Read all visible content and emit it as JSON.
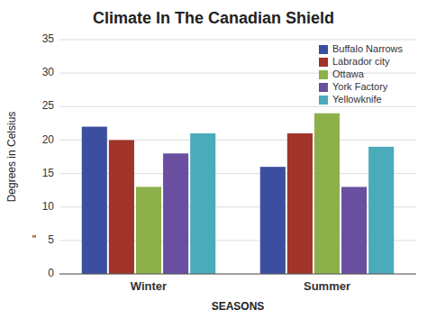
{
  "chart_data": {
    "type": "bar",
    "title": "Climate In The Canadian Shield",
    "xlabel": "SEASONS",
    "ylabel": "Degrees in Celsius",
    "categories": [
      "Winter",
      "Summer"
    ],
    "series": [
      {
        "name": "Buffalo Narrows",
        "color": "#3A4FA0",
        "values": [
          22,
          16
        ]
      },
      {
        "name": "Labrador city",
        "color": "#A0342A",
        "values": [
          20,
          21
        ]
      },
      {
        "name": "Ottawa",
        "color": "#8DB04A",
        "values": [
          13,
          24
        ]
      },
      {
        "name": "York Factory",
        "color": "#6A4FA0",
        "values": [
          18,
          13
        ]
      },
      {
        "name": "Yellowknife",
        "color": "#4AABBB",
        "values": [
          21,
          19
        ]
      }
    ],
    "ylim": [
      0,
      35
    ],
    "yticks": [
      0,
      5,
      10,
      15,
      20,
      25,
      30,
      35
    ],
    "grid": true,
    "legend": "upper right",
    "annotations": [
      {
        "text": "\"",
        "y": 5
      }
    ]
  }
}
